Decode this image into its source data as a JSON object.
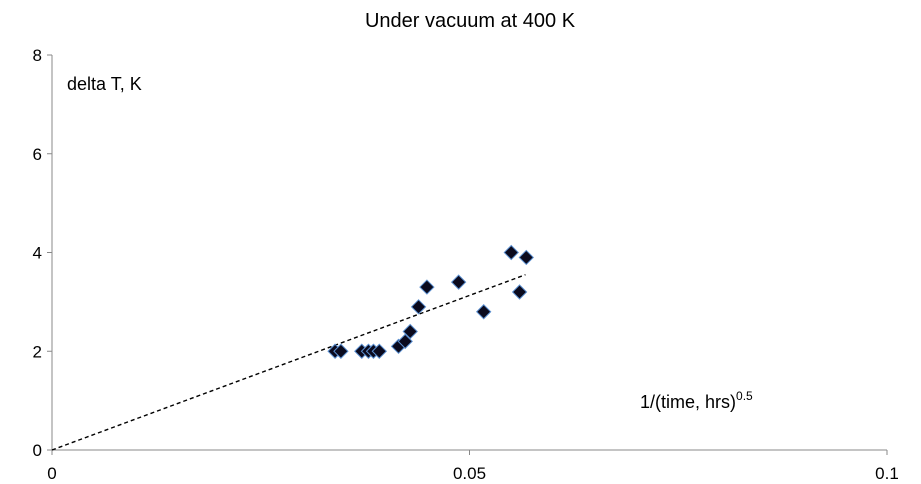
{
  "chart_data": {
    "type": "scatter",
    "title": "Under vacuum at 400 K",
    "ylabel": "delta T, K",
    "xlabel_main": "1/(time, hrs)",
    "xlabel_exponent": "0.5",
    "xlim": [
      0,
      0.1
    ],
    "ylim": [
      0,
      8
    ],
    "x_ticks": [
      "0",
      "0.05",
      "0.1"
    ],
    "y_ticks": [
      "0",
      "2",
      "4",
      "6",
      "8"
    ],
    "grid": false,
    "legend": "none",
    "marker": "diamond",
    "marker_color": "#0a0a1e",
    "marker_edge_color": "#5b8fd0",
    "trendline": {
      "type": "linear",
      "style": "dashed",
      "color": "#000000",
      "x": [
        0,
        0.0567
      ],
      "y": [
        0,
        3.55
      ]
    },
    "points": [
      {
        "x": 0.0339,
        "y": 2.0
      },
      {
        "x": 0.0346,
        "y": 2.0
      },
      {
        "x": 0.0371,
        "y": 2.0
      },
      {
        "x": 0.0379,
        "y": 2.0
      },
      {
        "x": 0.0385,
        "y": 2.0
      },
      {
        "x": 0.0392,
        "y": 2.0
      },
      {
        "x": 0.0415,
        "y": 2.1
      },
      {
        "x": 0.0423,
        "y": 2.2
      },
      {
        "x": 0.0429,
        "y": 2.4
      },
      {
        "x": 0.0439,
        "y": 2.9
      },
      {
        "x": 0.0449,
        "y": 3.3
      },
      {
        "x": 0.0487,
        "y": 3.4
      },
      {
        "x": 0.0517,
        "y": 2.8
      },
      {
        "x": 0.055,
        "y": 4.0
      },
      {
        "x": 0.056,
        "y": 3.2
      },
      {
        "x": 0.0568,
        "y": 3.9
      }
    ]
  }
}
